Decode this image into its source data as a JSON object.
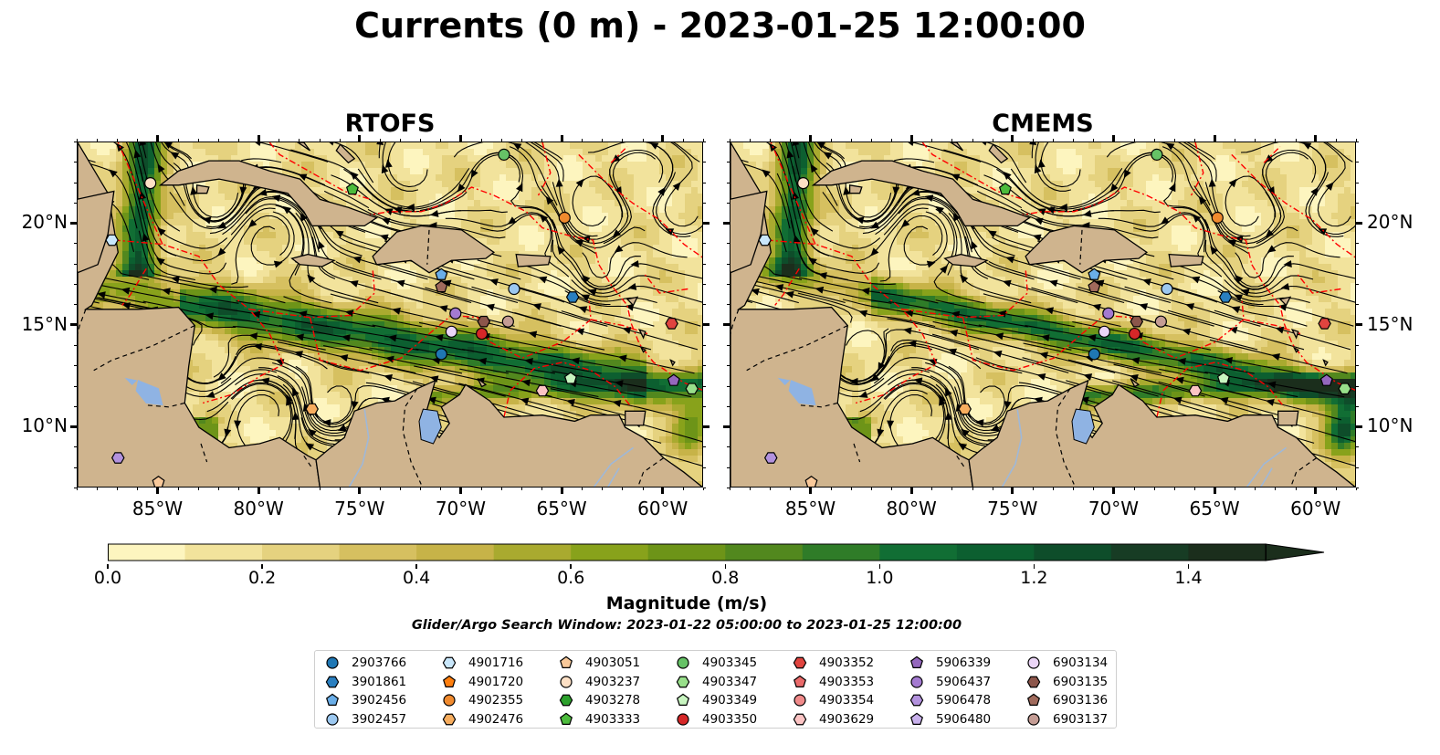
{
  "figure": {
    "title": "Currents (0 m) - 2023-01-25 12:00:00",
    "panels": [
      {
        "title": "RTOFS"
      },
      {
        "title": "CMEMS"
      }
    ],
    "lon_ticks": [
      "85°W",
      "80°W",
      "75°W",
      "70°W",
      "65°W",
      "60°W"
    ],
    "lat_ticks": [
      "20°N",
      "15°N",
      "10°N"
    ],
    "extent": {
      "lon": [
        -89,
        -58
      ],
      "lat": [
        7,
        24
      ]
    },
    "colors": {
      "land": "#cfb48e",
      "lake": "#8fb3e3",
      "eez_line": "#ff0000",
      "streamline": "#000000"
    }
  },
  "colorbar": {
    "label": "Magnitude (m/s)",
    "ticks": [
      "0.0",
      "0.2",
      "0.4",
      "0.6",
      "0.8",
      "1.0",
      "1.2",
      "1.4"
    ],
    "range": [
      0.0,
      1.5
    ],
    "extend": "max",
    "colors": [
      "#fdf5bf",
      "#f2e39c",
      "#e5d27f",
      "#d6c060",
      "#c7b348",
      "#a9aa2f",
      "#88a21b",
      "#6d9418",
      "#52881e",
      "#2f7c28",
      "#116e34",
      "#0c5f30",
      "#0e4d2a",
      "#173c24",
      "#1b2e1c"
    ]
  },
  "search_window": "Glider/Argo Search Window: 2023-01-22 05:00:00 to 2023-01-25 12:00:00",
  "legend": [
    {
      "id": "2903766",
      "color": "#1f77b4",
      "marker": "circle"
    },
    {
      "id": "3901861",
      "color": "#2a7fc0",
      "marker": "hexagon"
    },
    {
      "id": "3902456",
      "color": "#6aaee8",
      "marker": "pentagon"
    },
    {
      "id": "3902457",
      "color": "#9cc8f0",
      "marker": "circle"
    },
    {
      "id": "4901716",
      "color": "#c9e7fb",
      "marker": "hexagon"
    },
    {
      "id": "4901720",
      "color": "#ff7f0e",
      "marker": "pentagon"
    },
    {
      "id": "4902355",
      "color": "#f08a2e",
      "marker": "circle"
    },
    {
      "id": "4902476",
      "color": "#f7ad5e",
      "marker": "hexagon"
    },
    {
      "id": "4903051",
      "color": "#f9c99a",
      "marker": "pentagon"
    },
    {
      "id": "4903237",
      "color": "#fde0c5",
      "marker": "circle"
    },
    {
      "id": "4903278",
      "color": "#2ca02c",
      "marker": "hexagon"
    },
    {
      "id": "4903333",
      "color": "#4cbb3c",
      "marker": "pentagon"
    },
    {
      "id": "4903345",
      "color": "#66c266",
      "marker": "circle"
    },
    {
      "id": "4903347",
      "color": "#98df8a",
      "marker": "hexagon"
    },
    {
      "id": "4903349",
      "color": "#c8f5c0",
      "marker": "pentagon"
    },
    {
      "id": "4903350",
      "color": "#d62728",
      "marker": "circle"
    },
    {
      "id": "4903352",
      "color": "#e0443f",
      "marker": "hexagon"
    },
    {
      "id": "4903353",
      "color": "#ea6a6a",
      "marker": "pentagon"
    },
    {
      "id": "4903354",
      "color": "#f08a8a",
      "marker": "circle"
    },
    {
      "id": "4903629",
      "color": "#fcc4c4",
      "marker": "hexagon"
    },
    {
      "id": "5906339",
      "color": "#9467bd",
      "marker": "pentagon"
    },
    {
      "id": "5906437",
      "color": "#a47ad1",
      "marker": "circle"
    },
    {
      "id": "5906478",
      "color": "#b392de",
      "marker": "hexagon"
    },
    {
      "id": "5906480",
      "color": "#c8b0ec",
      "marker": "pentagon"
    },
    {
      "id": "6903134",
      "color": "#ebd5f7",
      "marker": "circle"
    },
    {
      "id": "6903135",
      "color": "#8c564b",
      "marker": "hexagon"
    },
    {
      "id": "6903136",
      "color": "#a06a5c",
      "marker": "pentagon"
    },
    {
      "id": "6903137",
      "color": "#c49c94",
      "marker": "circle"
    }
  ],
  "floats": {
    "RTOFS": [
      {
        "id": "4903237",
        "lon": -85.4,
        "lat": 22.0
      },
      {
        "id": "4901716",
        "lon": -87.3,
        "lat": 19.2
      },
      {
        "id": "4903345",
        "lon": -67.9,
        "lat": 23.4
      },
      {
        "id": "4903333",
        "lon": -75.4,
        "lat": 21.7
      },
      {
        "id": "4902355",
        "lon": -64.9,
        "lat": 20.3
      },
      {
        "id": "3902456",
        "lon": -71.0,
        "lat": 17.5
      },
      {
        "id": "6903136",
        "lon": -71.0,
        "lat": 16.9
      },
      {
        "id": "3902457",
        "lon": -67.4,
        "lat": 16.8
      },
      {
        "id": "3901861",
        "lon": -64.5,
        "lat": 16.4
      },
      {
        "id": "5906437",
        "lon": -70.3,
        "lat": 15.6
      },
      {
        "id": "6903135",
        "lon": -68.9,
        "lat": 15.2
      },
      {
        "id": "6903137",
        "lon": -67.7,
        "lat": 15.2
      },
      {
        "id": "6903134",
        "lon": -70.5,
        "lat": 14.7
      },
      {
        "id": "4903350",
        "lon": -69.0,
        "lat": 14.6
      },
      {
        "id": "4903352",
        "lon": -59.6,
        "lat": 15.1
      },
      {
        "id": "2903766",
        "lon": -71.0,
        "lat": 13.6
      },
      {
        "id": "4903349",
        "lon": -64.6,
        "lat": 12.4
      },
      {
        "id": "5906339",
        "lon": -59.5,
        "lat": 12.3
      },
      {
        "id": "4903629",
        "lon": -66.0,
        "lat": 11.8
      },
      {
        "id": "4903347",
        "lon": -58.6,
        "lat": 11.9
      },
      {
        "id": "4902476",
        "lon": -77.4,
        "lat": 10.9
      },
      {
        "id": "5906478",
        "lon": -87.0,
        "lat": 8.5
      },
      {
        "id": "4903051",
        "lon": -85.0,
        "lat": 7.3
      }
    ],
    "CMEMS": [
      {
        "id": "4903237",
        "lon": -85.4,
        "lat": 22.0
      },
      {
        "id": "4901716",
        "lon": -87.3,
        "lat": 19.2
      },
      {
        "id": "4903345",
        "lon": -67.9,
        "lat": 23.4
      },
      {
        "id": "4903333",
        "lon": -75.4,
        "lat": 21.7
      },
      {
        "id": "4902355",
        "lon": -64.9,
        "lat": 20.3
      },
      {
        "id": "3902456",
        "lon": -71.0,
        "lat": 17.5
      },
      {
        "id": "6903136",
        "lon": -71.0,
        "lat": 16.9
      },
      {
        "id": "3902457",
        "lon": -67.4,
        "lat": 16.8
      },
      {
        "id": "3901861",
        "lon": -64.5,
        "lat": 16.4
      },
      {
        "id": "5906437",
        "lon": -70.3,
        "lat": 15.6
      },
      {
        "id": "6903135",
        "lon": -68.9,
        "lat": 15.2
      },
      {
        "id": "6903137",
        "lon": -67.7,
        "lat": 15.2
      },
      {
        "id": "6903134",
        "lon": -70.5,
        "lat": 14.7
      },
      {
        "id": "4903350",
        "lon": -69.0,
        "lat": 14.6
      },
      {
        "id": "4903352",
        "lon": -59.6,
        "lat": 15.1
      },
      {
        "id": "2903766",
        "lon": -71.0,
        "lat": 13.6
      },
      {
        "id": "4903349",
        "lon": -64.6,
        "lat": 12.4
      },
      {
        "id": "5906339",
        "lon": -59.5,
        "lat": 12.3
      },
      {
        "id": "4903629",
        "lon": -66.0,
        "lat": 11.8
      },
      {
        "id": "4903347",
        "lon": -58.6,
        "lat": 11.9
      },
      {
        "id": "4902476",
        "lon": -77.4,
        "lat": 10.9
      },
      {
        "id": "5906478",
        "lon": -87.0,
        "lat": 8.5
      },
      {
        "id": "4903051",
        "lon": -85.0,
        "lat": 7.3
      }
    ]
  }
}
